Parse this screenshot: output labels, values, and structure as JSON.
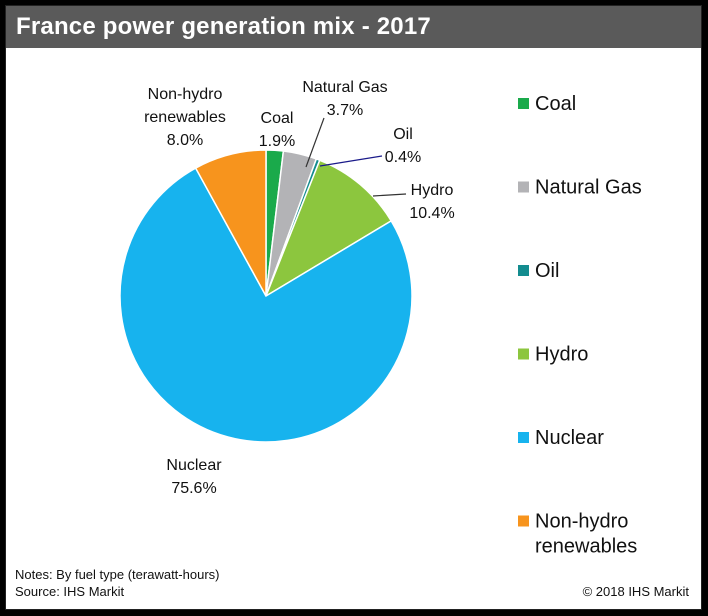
{
  "title": "France power generation mix - 2017",
  "notes": "Notes: By fuel type (terawatt-hours)",
  "source": "Source: IHS Markit",
  "copyright": "© 2018 IHS Markit",
  "chart_data": {
    "type": "pie",
    "title": "France power generation mix - 2017",
    "unit": "%",
    "legend_placement": "right",
    "slices": [
      {
        "name": "Coal",
        "value": 1.9,
        "label": "1.9%",
        "color": "#1aaa4b"
      },
      {
        "name": "Natural Gas",
        "value": 3.7,
        "label": "3.7%",
        "color": "#b3b3b6"
      },
      {
        "name": "Oil",
        "value": 0.4,
        "label": "0.4%",
        "color": "#138c8f"
      },
      {
        "name": "Hydro",
        "value": 10.4,
        "label": "10.4%",
        "color": "#8cc63e"
      },
      {
        "name": "Nuclear",
        "value": 75.6,
        "label": "75.6%",
        "color": "#17b3ee"
      },
      {
        "name": "Non-hydro renewables",
        "value": 8.0,
        "label": "8.0%",
        "color": "#f7941d"
      }
    ],
    "legend": [
      "Coal",
      "Natural Gas",
      "Oil",
      "Hydro",
      "Nuclear",
      "Non-hydro renewables"
    ]
  }
}
